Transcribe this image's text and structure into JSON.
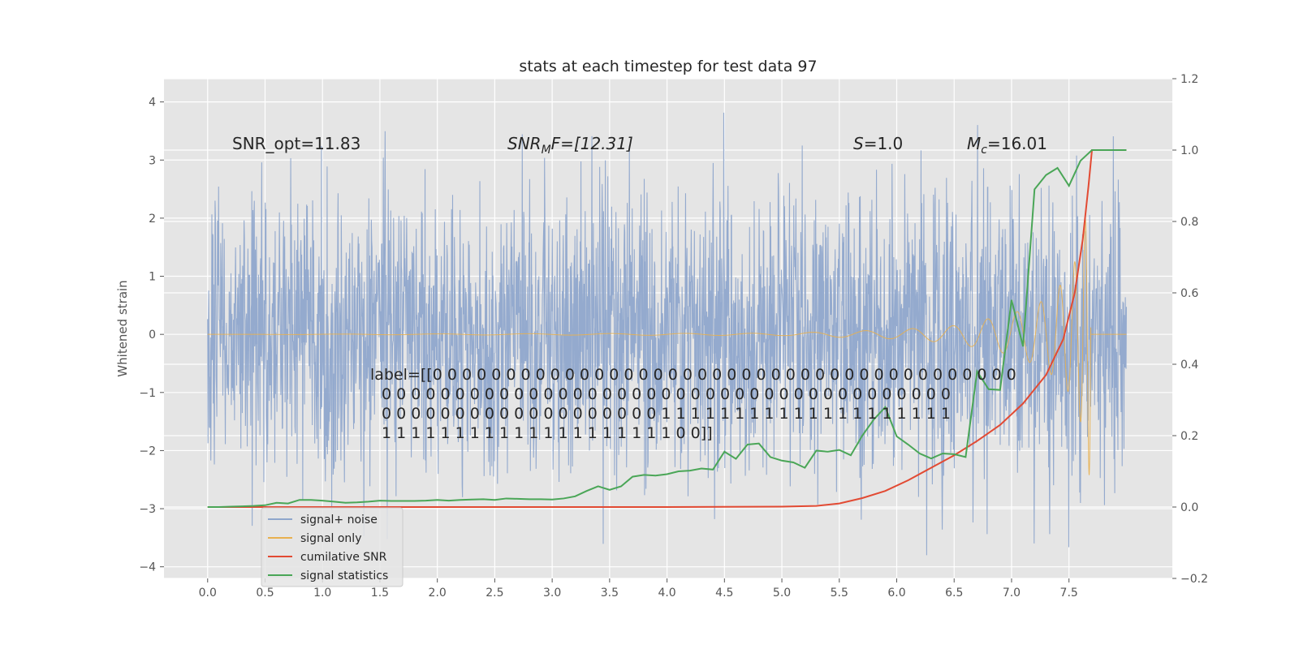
{
  "chart_data": {
    "type": "line",
    "title": "stats at each timestep for test data 97",
    "ylabel": "Whitened strain",
    "xlim": [
      -0.38,
      8.4
    ],
    "ylim": [
      -4.2,
      4.4
    ],
    "y2lim": [
      -0.2,
      1.2
    ],
    "grid": true,
    "legend_position": "lower-left",
    "x_ticks": [
      "0.0",
      "0.5",
      "1.0",
      "1.5",
      "2.0",
      "2.5",
      "3.0",
      "3.5",
      "4.0",
      "4.5",
      "5.0",
      "5.5",
      "6.0",
      "6.5",
      "7.0",
      "7.5"
    ],
    "y_ticks": [
      "4",
      "3",
      "2",
      "1",
      "0",
      "−1",
      "−2",
      "−3",
      "−4"
    ],
    "y2_ticks": [
      "1.2",
      "1.0",
      "0.8",
      "0.6",
      "0.4",
      "0.2",
      "0.0",
      "−0.2"
    ],
    "annotations": {
      "snr_opt": "SNR_opt=11.83",
      "snr_mf_prefix": "SNR",
      "snr_mf_sub": "M",
      "snr_mf_suffix": "F=[12.31]",
      "s_prefix": "S",
      "s_suffix": "=1.0",
      "mc_prefix": "M",
      "mc_sub": "c",
      "mc_suffix": "=16.01",
      "label_lines": [
        "label=[[0 0 0 0 0 0 0 0 0 0 0 0 0 0 0 0 0 0 0 0 0 0 0 0 0 0 0 0 0 0 0 0 0 0 0 0 0 0 0 0",
        "0 0 0 0 0 0 0 0 0 0 0 0 0 0 0 0 0 0 0 0 0 0 0 0 0 0 0 0 0 0 0 0 0 0 0 0 0 0 0",
        "0 0 0 0 0 0 0 0 0 0 0 0 0 0 0 0 0 0 0 1 1 1 1 1 1 1 1 1 1 1 1 1 1 1 1 1 1 1 1",
        "1 1 1 1 1 1 1 1 1 1 1 1 1 1 1 1 1 1 1 1 0 0]]"
      ]
    },
    "series": [
      {
        "name": "signal+ noise",
        "color": "#8fa7cc",
        "axis": "left",
        "note": "whitened strain, roughly ±2 with spikes up to ±4 over t=0 to 8"
      },
      {
        "name": "signal only",
        "color": "#e8b04f",
        "axis": "left",
        "envelope": {
          "x": [
            0,
            5.0,
            6.0,
            6.5,
            7.0,
            7.3,
            7.5,
            7.6,
            7.65,
            7.69
          ],
          "amp": [
            0,
            0.02,
            0.08,
            0.15,
            0.35,
            0.6,
            1.0,
            1.5,
            2.1,
            2.6
          ]
        }
      },
      {
        "name": "cumilative SNR",
        "color": "#e24a33",
        "axis": "right",
        "x": [
          0,
          1,
          2,
          3,
          4,
          5,
          5.3,
          5.5,
          5.7,
          5.9,
          6.1,
          6.3,
          6.5,
          6.7,
          6.9,
          7.1,
          7.3,
          7.45,
          7.55,
          7.62,
          7.67,
          7.7,
          8.0
        ],
        "y": [
          0,
          0,
          0,
          0,
          0,
          0.001,
          0.003,
          0.01,
          0.025,
          0.045,
          0.075,
          0.11,
          0.145,
          0.185,
          0.23,
          0.29,
          0.37,
          0.47,
          0.6,
          0.75,
          0.9,
          1.0,
          1.0
        ]
      },
      {
        "name": "signal statistics",
        "color": "#4aa657",
        "axis": "right",
        "x": [
          0,
          0.1,
          0.2,
          0.3,
          0.4,
          0.5,
          0.6,
          0.7,
          0.8,
          0.9,
          1.0,
          1.1,
          1.2,
          1.3,
          1.4,
          1.5,
          1.6,
          1.7,
          1.8,
          1.9,
          2.0,
          2.1,
          2.2,
          2.3,
          2.4,
          2.5,
          2.6,
          2.7,
          2.8,
          2.9,
          3.0,
          3.1,
          3.2,
          3.3,
          3.4,
          3.5,
          3.6,
          3.7,
          3.8,
          3.9,
          4.0,
          4.1,
          4.2,
          4.3,
          4.4,
          4.5,
          4.6,
          4.7,
          4.8,
          4.9,
          5.0,
          5.1,
          5.2,
          5.3,
          5.4,
          5.5,
          5.6,
          5.7,
          5.8,
          5.9,
          6.0,
          6.1,
          6.2,
          6.3,
          6.4,
          6.5,
          6.6,
          6.7,
          6.8,
          6.9,
          7.0,
          7.1,
          7.2,
          7.3,
          7.4,
          7.5,
          7.6,
          7.7,
          7.8,
          7.9,
          8.0
        ],
        "y": [
          0,
          0,
          0.001,
          0.002,
          0.003,
          0.005,
          0.012,
          0.01,
          0.02,
          0.02,
          0.018,
          0.015,
          0.012,
          0.013,
          0.015,
          0.018,
          0.017,
          0.017,
          0.017,
          0.018,
          0.02,
          0.018,
          0.02,
          0.021,
          0.022,
          0.02,
          0.024,
          0.023,
          0.022,
          0.022,
          0.021,
          0.024,
          0.03,
          0.045,
          0.058,
          0.048,
          0.058,
          0.085,
          0.09,
          0.088,
          0.092,
          0.1,
          0.102,
          0.108,
          0.105,
          0.155,
          0.135,
          0.175,
          0.178,
          0.14,
          0.13,
          0.125,
          0.11,
          0.158,
          0.155,
          0.16,
          0.145,
          0.2,
          0.245,
          0.28,
          0.198,
          0.175,
          0.15,
          0.136,
          0.15,
          0.148,
          0.14,
          0.38,
          0.33,
          0.328,
          0.58,
          0.45,
          0.89,
          0.93,
          0.95,
          0.9,
          0.97,
          1.0,
          1.0,
          1.0,
          1.0
        ]
      }
    ]
  }
}
